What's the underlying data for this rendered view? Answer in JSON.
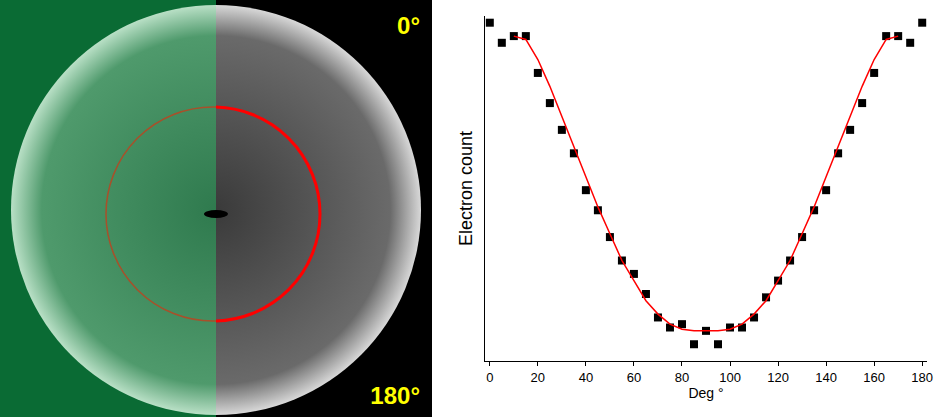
{
  "chart_data": {
    "type": "scatter",
    "x_label": "Deg °",
    "y_label": "Electron count",
    "xlim": [
      -2,
      182
    ],
    "xticks": [
      0,
      20,
      40,
      60,
      80,
      100,
      120,
      140,
      160,
      180
    ],
    "ylim": [
      -0.03,
      1.0
    ],
    "tick_labels": "x",
    "grid": false,
    "series": [
      {
        "type": "scatter",
        "marker": "square",
        "color": "#000000",
        "x": [
          0,
          5,
          10,
          15,
          20,
          25,
          30,
          35,
          40,
          45,
          50,
          55,
          60,
          65,
          70,
          75,
          80,
          85,
          90,
          95,
          100,
          105,
          110,
          115,
          120,
          125,
          130,
          135,
          140,
          145,
          150,
          155,
          160,
          165,
          170,
          175,
          180
        ],
        "values": [
          0.98,
          0.92,
          0.94,
          0.94,
          0.83,
          0.74,
          0.66,
          0.59,
          0.48,
          0.42,
          0.34,
          0.27,
          0.23,
          0.17,
          0.1,
          0.07,
          0.08,
          0.02,
          0.06,
          0.02,
          0.07,
          0.07,
          0.1,
          0.16,
          0.21,
          0.27,
          0.34,
          0.42,
          0.48,
          0.59,
          0.66,
          0.74,
          0.83,
          0.94,
          0.94,
          0.92,
          0.98
        ]
      },
      {
        "type": "line",
        "line_style": "solid",
        "color": "#ff0000",
        "x": [
          10,
          15,
          20,
          25,
          30,
          35,
          40,
          45,
          50,
          55,
          60,
          65,
          70,
          75,
          80,
          85,
          90,
          95,
          100,
          105,
          110,
          115,
          120,
          125,
          130,
          135,
          140,
          145,
          150,
          155,
          160,
          165,
          170
        ],
        "values": [
          0.94,
          0.93,
          0.87,
          0.79,
          0.7,
          0.61,
          0.52,
          0.43,
          0.35,
          0.27,
          0.21,
          0.15,
          0.11,
          0.08,
          0.065,
          0.06,
          0.06,
          0.06,
          0.065,
          0.08,
          0.11,
          0.15,
          0.21,
          0.27,
          0.35,
          0.43,
          0.52,
          0.61,
          0.7,
          0.79,
          0.87,
          0.93,
          0.94
        ]
      }
    ]
  },
  "image": {
    "top_label": "0°",
    "bottom_label": "180°"
  }
}
